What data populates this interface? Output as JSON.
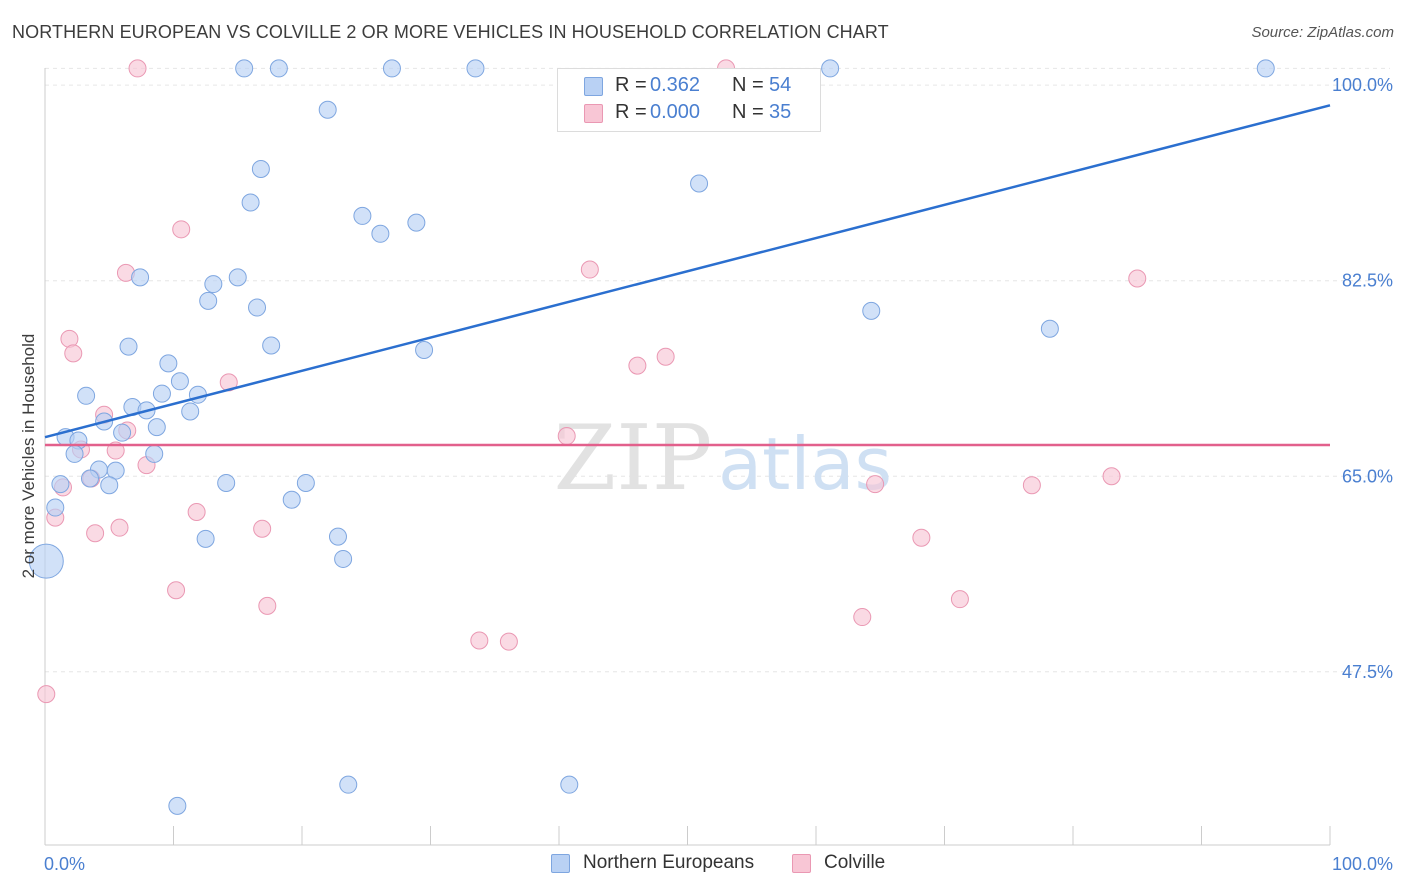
{
  "title": "NORTHERN EUROPEAN VS COLVILLE 2 OR MORE VEHICLES IN HOUSEHOLD CORRELATION CHART",
  "source": "Source: ZipAtlas.com",
  "watermark": {
    "zip": "ZIP",
    "atlas": "atlas"
  },
  "legend": {
    "r_label": "R =",
    "n_label": "N =",
    "series": [
      {
        "name": "Northern Europeans",
        "r": "0.362",
        "n": "54"
      },
      {
        "name": "Colville",
        "r": "0.000",
        "n": "35"
      }
    ]
  },
  "colors": {
    "blue_fill": "#b9d1f4",
    "blue_stroke": "#7ea6e0",
    "blue_line": "#2b6fcf",
    "pink_fill": "#f8c6d5",
    "pink_stroke": "#ea98b3",
    "pink_line": "#e2608c",
    "tick_text": "#4a7fd0",
    "grid": "#e6e6e6"
  },
  "chart_data": {
    "type": "scatter",
    "title": "NORTHERN EUROPEAN VS COLVILLE 2 OR MORE VEHICLES IN HOUSEHOLD CORRELATION CHART",
    "xlabel": "",
    "ylabel": "2 or more Vehicles in Household",
    "xlim": [
      0,
      100
    ],
    "ylim": [
      32,
      101
    ],
    "x_tick_labels": [
      {
        "value": 0,
        "label": "0.0%"
      },
      {
        "value": 100,
        "label": "100.0%"
      }
    ],
    "y_ticks": [
      {
        "value": 47.5,
        "label": "47.5%"
      },
      {
        "value": 65.0,
        "label": "65.0%"
      },
      {
        "value": 82.5,
        "label": "82.5%"
      },
      {
        "value": 100.0,
        "label": "100.0%"
      }
    ],
    "grid": true,
    "series": [
      {
        "name": "Northern Europeans",
        "color": "blue",
        "trendline": {
          "x": [
            0,
            100
          ],
          "y": [
            68.5,
            98.2
          ]
        },
        "points": [
          {
            "x": 15.5,
            "y": 101.5
          },
          {
            "x": 18.2,
            "y": 101.5
          },
          {
            "x": 27.0,
            "y": 101.5
          },
          {
            "x": 33.5,
            "y": 101.5
          },
          {
            "x": 61.1,
            "y": 101.5
          },
          {
            "x": 95.0,
            "y": 101.5
          },
          {
            "x": 22.0,
            "y": 97.8
          },
          {
            "x": 16.8,
            "y": 92.5
          },
          {
            "x": 50.9,
            "y": 91.2
          },
          {
            "x": 16.0,
            "y": 89.5
          },
          {
            "x": 24.7,
            "y": 88.3
          },
          {
            "x": 28.9,
            "y": 87.7
          },
          {
            "x": 26.1,
            "y": 86.7
          },
          {
            "x": 7.4,
            "y": 82.8
          },
          {
            "x": 15.0,
            "y": 82.8
          },
          {
            "x": 13.1,
            "y": 82.2
          },
          {
            "x": 12.7,
            "y": 80.7
          },
          {
            "x": 16.5,
            "y": 80.1
          },
          {
            "x": 64.3,
            "y": 79.8
          },
          {
            "x": 78.2,
            "y": 78.2
          },
          {
            "x": 6.5,
            "y": 76.6
          },
          {
            "x": 17.6,
            "y": 76.7
          },
          {
            "x": 29.5,
            "y": 76.3
          },
          {
            "x": 9.6,
            "y": 75.1
          },
          {
            "x": 10.5,
            "y": 73.5
          },
          {
            "x": 9.1,
            "y": 72.4
          },
          {
            "x": 11.9,
            "y": 72.3
          },
          {
            "x": 3.2,
            "y": 72.2
          },
          {
            "x": 6.8,
            "y": 71.2
          },
          {
            "x": 7.9,
            "y": 70.9
          },
          {
            "x": 11.3,
            "y": 70.8
          },
          {
            "x": 4.6,
            "y": 69.9
          },
          {
            "x": 8.7,
            "y": 69.4
          },
          {
            "x": 6.0,
            "y": 68.9
          },
          {
            "x": 1.6,
            "y": 68.5
          },
          {
            "x": 2.6,
            "y": 68.2
          },
          {
            "x": 2.3,
            "y": 67.0
          },
          {
            "x": 8.5,
            "y": 67.0
          },
          {
            "x": 4.2,
            "y": 65.6
          },
          {
            "x": 5.5,
            "y": 65.5
          },
          {
            "x": 3.5,
            "y": 64.8
          },
          {
            "x": 1.2,
            "y": 64.3
          },
          {
            "x": 5.0,
            "y": 64.2
          },
          {
            "x": 14.1,
            "y": 64.4
          },
          {
            "x": 20.3,
            "y": 64.4
          },
          {
            "x": 19.2,
            "y": 62.9
          },
          {
            "x": 0.8,
            "y": 62.2
          },
          {
            "x": 12.5,
            "y": 59.4
          },
          {
            "x": 22.8,
            "y": 59.6
          },
          {
            "x": 23.2,
            "y": 57.6
          },
          {
            "x": 0.1,
            "y": 57.4
          },
          {
            "x": 23.6,
            "y": 37.4
          },
          {
            "x": 40.8,
            "y": 37.4
          },
          {
            "x": 10.3,
            "y": 35.5
          }
        ]
      },
      {
        "name": "Colville",
        "color": "pink",
        "trendline": {
          "x": [
            0,
            100
          ],
          "y": [
            67.8,
            67.8
          ]
        },
        "points": [
          {
            "x": 7.2,
            "y": 101.5
          },
          {
            "x": 53.0,
            "y": 101.5
          },
          {
            "x": 10.6,
            "y": 87.1
          },
          {
            "x": 6.3,
            "y": 83.2
          },
          {
            "x": 42.4,
            "y": 83.5
          },
          {
            "x": 85.0,
            "y": 82.7
          },
          {
            "x": 1.9,
            "y": 77.3
          },
          {
            "x": 2.2,
            "y": 76.0
          },
          {
            "x": 48.3,
            "y": 75.7
          },
          {
            "x": 46.1,
            "y": 74.9
          },
          {
            "x": 14.3,
            "y": 73.4
          },
          {
            "x": 4.6,
            "y": 70.5
          },
          {
            "x": 6.4,
            "y": 69.1
          },
          {
            "x": 40.6,
            "y": 68.6
          },
          {
            "x": 2.8,
            "y": 67.4
          },
          {
            "x": 5.5,
            "y": 67.3
          },
          {
            "x": 7.9,
            "y": 66.0
          },
          {
            "x": 3.6,
            "y": 64.8
          },
          {
            "x": 1.4,
            "y": 64.0
          },
          {
            "x": 64.6,
            "y": 64.3
          },
          {
            "x": 76.8,
            "y": 64.2
          },
          {
            "x": 83.0,
            "y": 65.0
          },
          {
            "x": 11.8,
            "y": 61.8
          },
          {
            "x": 0.8,
            "y": 61.3
          },
          {
            "x": 5.8,
            "y": 60.4
          },
          {
            "x": 3.9,
            "y": 59.9
          },
          {
            "x": 16.9,
            "y": 60.3
          },
          {
            "x": 68.2,
            "y": 59.5
          },
          {
            "x": 10.2,
            "y": 54.8
          },
          {
            "x": 71.2,
            "y": 54.0
          },
          {
            "x": 17.3,
            "y": 53.4
          },
          {
            "x": 63.6,
            "y": 52.4
          },
          {
            "x": 33.8,
            "y": 50.3
          },
          {
            "x": 36.1,
            "y": 50.2
          },
          {
            "x": 0.1,
            "y": 45.5
          }
        ]
      }
    ]
  }
}
